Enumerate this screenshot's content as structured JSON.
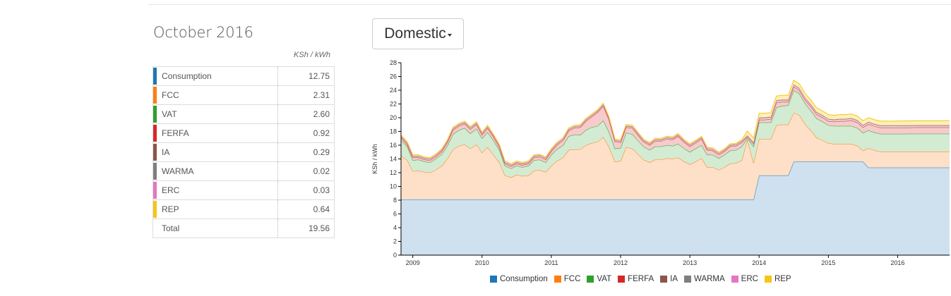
{
  "summary": {
    "period": "October 2016",
    "unit": "KSh / kWh",
    "rows": [
      {
        "name": "Consumption",
        "value": "12.75",
        "color": "#1f77b4"
      },
      {
        "name": "FCC",
        "value": "2.31",
        "color": "#ff7f0e"
      },
      {
        "name": "VAT",
        "value": "2.60",
        "color": "#2ca02c"
      },
      {
        "name": "FERFA",
        "value": "0.92",
        "color": "#d62728"
      },
      {
        "name": "IA",
        "value": "0.29",
        "color": "#8c564b"
      },
      {
        "name": "WARMA",
        "value": "0.02",
        "color": "#7f7f7f"
      },
      {
        "name": "ERC",
        "value": "0.03",
        "color": "#e377c2"
      },
      {
        "name": "REP",
        "value": "0.64",
        "color": "#f5c518"
      }
    ],
    "total_label": "Total",
    "total_value": "19.56"
  },
  "tariff_selector": {
    "label": "Domestic"
  },
  "chart_data": {
    "type": "area",
    "stacked": true,
    "title": "",
    "xlabel": "",
    "ylabel": "KSh / kWh",
    "xlim": [
      2008.83,
      2016.75
    ],
    "ylim": [
      0,
      28
    ],
    "yticks": [
      0,
      2,
      4,
      6,
      8,
      10,
      12,
      14,
      16,
      18,
      20,
      22,
      24,
      26,
      28
    ],
    "xticks": [
      2009,
      2010,
      2011,
      2012,
      2013,
      2014,
      2015,
      2016
    ],
    "xtick_labels": [
      "2009",
      "2010",
      "2011",
      "2012",
      "2013",
      "2014",
      "2015",
      "2016"
    ],
    "grid": false,
    "legend_position": "bottom",
    "x": [
      2008.83,
      2008.92,
      2009.0,
      2009.08,
      2009.17,
      2009.25,
      2009.33,
      2009.42,
      2009.5,
      2009.58,
      2009.67,
      2009.75,
      2009.83,
      2009.92,
      2010.0,
      2010.08,
      2010.17,
      2010.25,
      2010.33,
      2010.42,
      2010.5,
      2010.58,
      2010.67,
      2010.75,
      2010.83,
      2010.92,
      2011.0,
      2011.08,
      2011.17,
      2011.25,
      2011.33,
      2011.42,
      2011.5,
      2011.58,
      2011.67,
      2011.75,
      2011.83,
      2011.92,
      2012.0,
      2012.08,
      2012.17,
      2012.25,
      2012.33,
      2012.42,
      2012.5,
      2012.58,
      2012.67,
      2012.75,
      2012.83,
      2012.92,
      2013.0,
      2013.08,
      2013.17,
      2013.25,
      2013.33,
      2013.42,
      2013.5,
      2013.58,
      2013.67,
      2013.75,
      2013.83,
      2013.92,
      2014.0,
      2014.08,
      2014.17,
      2014.25,
      2014.33,
      2014.42,
      2014.5,
      2014.58,
      2014.67,
      2014.75,
      2014.83,
      2014.92,
      2015.0,
      2015.08,
      2015.17,
      2015.25,
      2015.33,
      2015.42,
      2015.5,
      2015.58,
      2015.67,
      2015.75,
      2015.83,
      2015.92,
      2016.0,
      2016.08,
      2016.17,
      2016.25,
      2016.33,
      2016.42,
      2016.5,
      2016.58,
      2016.67,
      2016.75
    ],
    "series": [
      {
        "name": "Consumption",
        "color": "#1f77b4",
        "values": [
          8.1,
          8.1,
          8.1,
          8.1,
          8.1,
          8.1,
          8.1,
          8.1,
          8.1,
          8.1,
          8.1,
          8.1,
          8.1,
          8.1,
          8.1,
          8.1,
          8.1,
          8.1,
          8.1,
          8.1,
          8.1,
          8.1,
          8.1,
          8.1,
          8.1,
          8.1,
          8.1,
          8.1,
          8.1,
          8.1,
          8.1,
          8.1,
          8.1,
          8.1,
          8.1,
          8.1,
          8.1,
          8.1,
          8.1,
          8.1,
          8.1,
          8.1,
          8.1,
          8.1,
          8.1,
          8.1,
          8.1,
          8.1,
          8.1,
          8.1,
          8.1,
          8.1,
          8.1,
          8.1,
          8.1,
          8.1,
          8.1,
          8.1,
          8.1,
          8.1,
          8.1,
          8.1,
          11.6,
          11.6,
          11.6,
          11.6,
          11.6,
          11.6,
          13.6,
          13.6,
          13.6,
          13.6,
          13.6,
          13.6,
          13.6,
          13.6,
          13.6,
          13.6,
          13.6,
          13.6,
          13.6,
          12.75,
          12.75,
          12.75,
          12.75,
          12.75,
          12.75,
          12.75,
          12.75,
          12.75,
          12.75,
          12.75,
          12.75,
          12.75,
          12.75,
          12.75
        ]
      },
      {
        "name": "FCC",
        "color": "#ff7f0e",
        "values": [
          6.4,
          5.7,
          4.1,
          4.2,
          4.0,
          3.9,
          4.3,
          4.9,
          5.9,
          7.3,
          7.8,
          8.0,
          7.4,
          8.0,
          6.8,
          7.6,
          6.4,
          5.4,
          3.5,
          3.2,
          3.6,
          3.4,
          3.5,
          4.2,
          4.3,
          4.0,
          4.9,
          5.6,
          6.1,
          7.2,
          7.3,
          7.3,
          7.9,
          8.2,
          8.4,
          9.1,
          7.7,
          5.5,
          5.6,
          7.6,
          7.4,
          6.6,
          5.8,
          5.4,
          5.8,
          5.8,
          6.0,
          5.9,
          6.1,
          5.5,
          5.1,
          5.5,
          6.0,
          4.7,
          4.7,
          4.3,
          4.7,
          5.2,
          5.3,
          5.7,
          8.7,
          5.3,
          5.3,
          5.3,
          5.3,
          7.3,
          7.4,
          7.4,
          7.1,
          6.8,
          5.4,
          4.5,
          3.5,
          3.1,
          2.7,
          2.6,
          2.6,
          2.6,
          2.6,
          2.3,
          1.6,
          2.8,
          2.5,
          2.3,
          2.3,
          2.3,
          2.3,
          2.3,
          2.31,
          2.31,
          2.31,
          2.31,
          2.31,
          2.31,
          2.31,
          2.31
        ]
      },
      {
        "name": "VAT",
        "color": "#2ca02c",
        "values": [
          2.2,
          2.0,
          1.6,
          1.6,
          1.5,
          1.5,
          1.6,
          1.7,
          1.9,
          2.2,
          2.3,
          2.4,
          2.2,
          2.3,
          2.1,
          2.2,
          2.1,
          1.8,
          1.4,
          1.3,
          1.3,
          1.3,
          1.4,
          1.5,
          1.5,
          1.4,
          1.6,
          1.7,
          1.8,
          2.0,
          2.1,
          2.1,
          2.2,
          2.3,
          2.3,
          2.4,
          2.2,
          1.9,
          1.9,
          2.1,
          2.1,
          2.0,
          1.9,
          1.8,
          1.9,
          1.9,
          1.9,
          1.9,
          2.0,
          1.9,
          1.8,
          1.9,
          1.9,
          1.8,
          1.8,
          1.7,
          1.8,
          1.9,
          1.9,
          2.0,
          0.2,
          2.4,
          2.4,
          2.4,
          2.4,
          2.6,
          2.7,
          2.8,
          3.3,
          3.1,
          3.0,
          2.9,
          2.8,
          2.7,
          2.6,
          2.6,
          2.6,
          2.6,
          2.6,
          2.6,
          2.6,
          2.6,
          2.6,
          2.6,
          2.6,
          2.6,
          2.6,
          2.6,
          2.6,
          2.6,
          2.6,
          2.6,
          2.6,
          2.6,
          2.6,
          2.6
        ]
      },
      {
        "name": "FERFA",
        "color": "#d62728",
        "values": [
          0.4,
          0.3,
          0.4,
          0.3,
          0.3,
          0.3,
          0.3,
          0.4,
          0.5,
          0.6,
          0.6,
          0.6,
          0.6,
          0.6,
          0.5,
          0.6,
          0.5,
          0.4,
          0.3,
          0.3,
          0.3,
          0.3,
          0.3,
          0.4,
          0.4,
          0.4,
          0.5,
          0.6,
          0.7,
          0.8,
          1.0,
          1.1,
          1.3,
          1.5,
          2.0,
          2.1,
          1.8,
          1.0,
          0.8,
          0.8,
          0.9,
          0.8,
          0.7,
          0.7,
          0.8,
          0.8,
          0.9,
          0.9,
          1.1,
          0.9,
          0.8,
          0.8,
          0.9,
          0.7,
          0.6,
          0.5,
          0.5,
          0.6,
          0.6,
          0.6,
          0.2,
          0.4,
          0.4,
          0.4,
          0.5,
          0.7,
          0.6,
          0.5,
          0.5,
          0.5,
          0.5,
          0.6,
          0.6,
          0.6,
          0.6,
          0.6,
          0.7,
          0.7,
          0.8,
          0.8,
          0.8,
          0.9,
          0.9,
          0.9,
          0.9,
          0.9,
          0.9,
          0.9,
          0.9,
          0.92,
          0.92,
          0.92,
          0.92,
          0.92,
          0.92,
          0.92
        ]
      },
      {
        "name": "IA",
        "color": "#8c564b",
        "values": [
          0.2,
          0.2,
          0.2,
          0.2,
          0.2,
          0.2,
          0.2,
          0.2,
          0.2,
          0.2,
          0.2,
          0.2,
          0.2,
          0.2,
          0.2,
          0.2,
          0.2,
          0.2,
          0.2,
          0.2,
          0.2,
          0.2,
          0.2,
          0.2,
          0.2,
          0.2,
          0.2,
          0.2,
          0.2,
          0.2,
          0.2,
          0.2,
          0.2,
          0.2,
          0.2,
          0.2,
          0.2,
          0.2,
          0.2,
          0.2,
          0.2,
          0.2,
          0.2,
          0.2,
          0.2,
          0.2,
          0.2,
          0.2,
          0.2,
          0.2,
          0.2,
          0.2,
          0.2,
          0.2,
          0.2,
          0.2,
          0.2,
          0.2,
          0.2,
          0.2,
          0.2,
          0.2,
          0.3,
          0.3,
          0.3,
          0.3,
          0.3,
          0.3,
          0.3,
          0.3,
          0.3,
          0.3,
          0.3,
          0.3,
          0.3,
          0.3,
          0.3,
          0.3,
          0.3,
          0.3,
          0.3,
          0.3,
          0.3,
          0.3,
          0.3,
          0.29,
          0.29,
          0.29,
          0.29,
          0.29,
          0.29,
          0.29,
          0.29,
          0.29,
          0.29,
          0.29
        ]
      },
      {
        "name": "WARMA",
        "color": "#7f7f7f",
        "values": [
          0.02,
          0.02,
          0.02,
          0.02,
          0.02,
          0.02,
          0.02,
          0.02,
          0.02,
          0.02,
          0.02,
          0.02,
          0.02,
          0.02,
          0.02,
          0.02,
          0.02,
          0.02,
          0.02,
          0.02,
          0.02,
          0.02,
          0.02,
          0.02,
          0.02,
          0.02,
          0.02,
          0.02,
          0.02,
          0.02,
          0.02,
          0.02,
          0.02,
          0.02,
          0.02,
          0.02,
          0.02,
          0.02,
          0.02,
          0.02,
          0.02,
          0.02,
          0.02,
          0.02,
          0.02,
          0.02,
          0.02,
          0.02,
          0.02,
          0.02,
          0.02,
          0.02,
          0.02,
          0.02,
          0.02,
          0.02,
          0.02,
          0.02,
          0.02,
          0.02,
          0.02,
          0.02,
          0.02,
          0.02,
          0.02,
          0.02,
          0.02,
          0.02,
          0.02,
          0.02,
          0.02,
          0.02,
          0.02,
          0.02,
          0.02,
          0.02,
          0.02,
          0.02,
          0.02,
          0.02,
          0.02,
          0.02,
          0.02,
          0.02,
          0.02,
          0.02,
          0.02,
          0.02,
          0.02,
          0.02,
          0.02,
          0.02,
          0.02,
          0.02,
          0.02,
          0.02
        ]
      },
      {
        "name": "ERC",
        "color": "#e377c2",
        "values": [
          0.03,
          0.03,
          0.03,
          0.03,
          0.03,
          0.03,
          0.03,
          0.03,
          0.03,
          0.03,
          0.03,
          0.03,
          0.03,
          0.03,
          0.03,
          0.03,
          0.03,
          0.03,
          0.03,
          0.03,
          0.03,
          0.03,
          0.03,
          0.03,
          0.03,
          0.03,
          0.03,
          0.03,
          0.03,
          0.03,
          0.03,
          0.03,
          0.03,
          0.03,
          0.03,
          0.03,
          0.03,
          0.03,
          0.03,
          0.03,
          0.03,
          0.03,
          0.03,
          0.03,
          0.03,
          0.03,
          0.03,
          0.03,
          0.03,
          0.03,
          0.03,
          0.03,
          0.03,
          0.03,
          0.03,
          0.03,
          0.03,
          0.03,
          0.03,
          0.03,
          0.03,
          0.03,
          0.03,
          0.03,
          0.03,
          0.03,
          0.03,
          0.03,
          0.03,
          0.03,
          0.03,
          0.03,
          0.03,
          0.03,
          0.03,
          0.03,
          0.03,
          0.03,
          0.03,
          0.03,
          0.03,
          0.03,
          0.03,
          0.03,
          0.03,
          0.03,
          0.03,
          0.03,
          0.03,
          0.03,
          0.03,
          0.03,
          0.03,
          0.03,
          0.03,
          0.03
        ]
      },
      {
        "name": "REP",
        "color": "#f5c518",
        "values": [
          0.15,
          0.15,
          0.15,
          0.15,
          0.15,
          0.15,
          0.15,
          0.15,
          0.15,
          0.15,
          0.15,
          0.15,
          0.15,
          0.15,
          0.15,
          0.15,
          0.15,
          0.15,
          0.15,
          0.15,
          0.15,
          0.15,
          0.15,
          0.15,
          0.15,
          0.15,
          0.15,
          0.15,
          0.15,
          0.15,
          0.15,
          0.15,
          0.15,
          0.15,
          0.15,
          0.15,
          0.15,
          0.15,
          0.15,
          0.15,
          0.15,
          0.15,
          0.15,
          0.15,
          0.15,
          0.15,
          0.15,
          0.15,
          0.15,
          0.15,
          0.15,
          0.15,
          0.15,
          0.15,
          0.15,
          0.15,
          0.15,
          0.15,
          0.15,
          0.15,
          0.6,
          0.6,
          0.6,
          0.6,
          0.6,
          0.6,
          0.6,
          0.6,
          0.6,
          0.6,
          0.6,
          0.6,
          0.6,
          0.6,
          0.6,
          0.6,
          0.6,
          0.6,
          0.6,
          0.6,
          0.6,
          0.6,
          0.6,
          0.6,
          0.6,
          0.6,
          0.64,
          0.64,
          0.64,
          0.64,
          0.64,
          0.64,
          0.64,
          0.64,
          0.64,
          0.64
        ]
      }
    ],
    "fill_colors": {
      "Consumption": "#cfe0ef",
      "FCC": "#fde0c7",
      "VAT": "#d3ebd3",
      "FERFA": "#f6cbcb",
      "IA": "#e2d2cc",
      "WARMA": "#e0e0e0",
      "ERC": "#f7d6ed",
      "REP": "#fdf0b4"
    }
  }
}
